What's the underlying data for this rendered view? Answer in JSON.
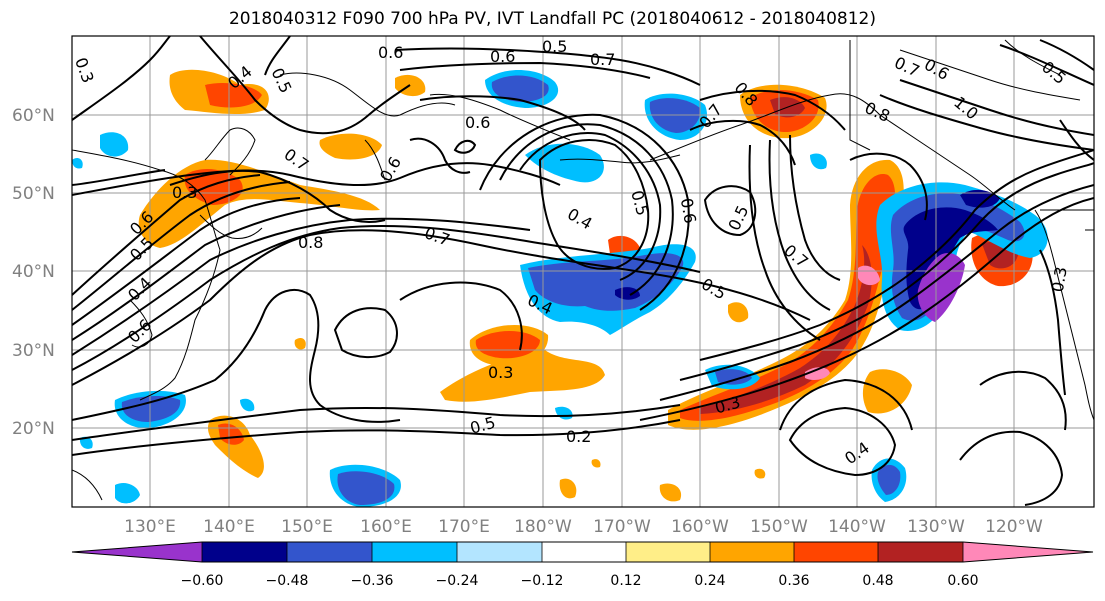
{
  "title": "2018040312 F090 700 hPa PV, IVT Landfall PC (2018040612 - 2018040812)",
  "lat_labels": [
    "60°N",
    "50°N",
    "40°N",
    "30°N",
    "20°N"
  ],
  "lon_labels": [
    "130°E",
    "140°E",
    "150°E",
    "160°E",
    "170°E",
    "180°W",
    "170°W",
    "160°W",
    "150°W",
    "140°W",
    "130°W",
    "120°W"
  ],
  "colorbar": {
    "colors": [
      "#9933cc",
      "#00008b",
      "#3355cc",
      "#00bfff",
      "#b3e5ff",
      "#ffffff",
      "#ffee88",
      "#ffa500",
      "#ff4500",
      "#b22222",
      "#ff88b8"
    ],
    "ticks": [
      "−0.60",
      "−0.48",
      "−0.36",
      "−0.24",
      "−0.12",
      "0.12",
      "0.24",
      "0.36",
      "0.48",
      "0.60"
    ]
  },
  "contour_labels": [
    "0.3",
    "0.4",
    "0.5",
    "0.6",
    "0.6",
    "0.5",
    "0.7",
    "0.6",
    "0.7",
    "0.8",
    "0.6",
    "0.7",
    "0.6",
    "0.5",
    "0.3",
    "0.8",
    "0.7",
    "0.4",
    "0.5",
    "0.6",
    "0.5",
    "0.7",
    "0.5",
    "0.4",
    "0.3",
    "0.5",
    "0.2",
    "0.3",
    "0.4",
    "0.6",
    "1.0",
    "0.5",
    "0.7",
    "0.8",
    "0.3",
    "0.4",
    "0.6"
  ]
}
